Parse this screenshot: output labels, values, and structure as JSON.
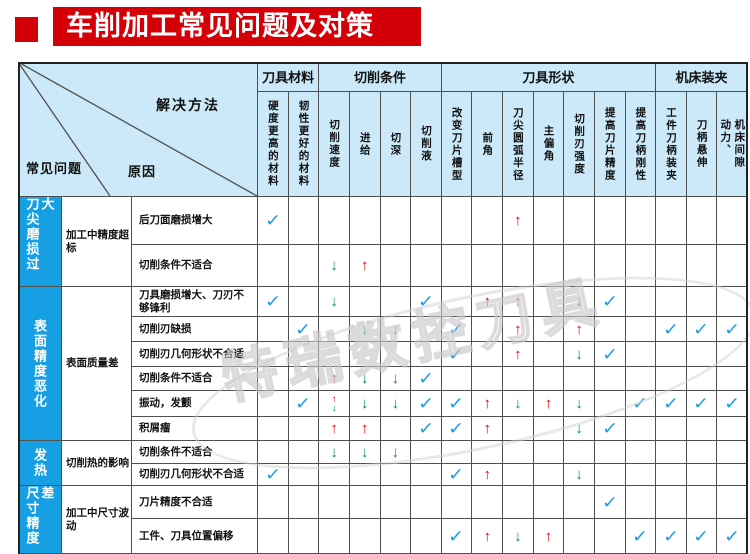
{
  "title": "车削加工常见问题及对策",
  "watermark": "特瑞数控刀具",
  "colors": {
    "title_red": "#d30008",
    "header_blue": "#cbe9f8",
    "category_blue": "#169fe2",
    "check_blue": "#1e9de3",
    "arrow_up_red": "#e60012",
    "arrow_down_green": "#00953e"
  },
  "corner": {
    "solution_label": "解决方法",
    "problem_label": "常见问题",
    "cause_label": "原因"
  },
  "column_groups": [
    {
      "label": "刀具材料",
      "span": 2
    },
    {
      "label": "切削条件",
      "span": 4
    },
    {
      "label": "刀具形状",
      "span": 7
    },
    {
      "label": "机床装夹",
      "span": 3
    }
  ],
  "columns": [
    "硬度更高的材料",
    "韧性更好的材料",
    "切削速度",
    "进给",
    "切深",
    "切削液",
    "改变刀片槽型",
    "前角",
    "刀尖圆弧半径",
    "主偏角",
    "切削刃强度",
    "提高刀片精度",
    "提高刀柄刚性",
    "工件刀柄装夹",
    "刀柄悬伸",
    "动力、\n机床间隙"
  ],
  "marks_key": {
    "c": "✓",
    "u": "↑",
    "d": "↓"
  },
  "row_groups": [
    {
      "category": "刀尖磨损过大",
      "problem": "加工中精度超标",
      "rows": [
        {
          "cause": "后刀面磨损增大",
          "marks": [
            "c",
            "",
            "",
            "",
            "",
            "",
            "",
            "",
            "u",
            "",
            "",
            "",
            "",
            "",
            "",
            ""
          ]
        },
        {
          "cause": "切削条件不适合",
          "marks": [
            "",
            "",
            "d",
            "u",
            "",
            "",
            "",
            "",
            "",
            "",
            "",
            "",
            "",
            "",
            "",
            ""
          ]
        }
      ]
    },
    {
      "category": "表面精度恶化",
      "problem": "表面质量差",
      "rows": [
        {
          "cause": "刀具磨损增大、刀刃不够锋利",
          "marks": [
            "c",
            "",
            "d",
            "",
            "",
            "c",
            "",
            "u",
            "u",
            "",
            "d",
            "c",
            "",
            "",
            "",
            ""
          ]
        },
        {
          "cause": "切削刃缺损",
          "marks": [
            "",
            "c",
            "",
            "d",
            "d",
            "",
            "c",
            "",
            "u",
            "",
            "u",
            "",
            "",
            "c",
            "c",
            "c"
          ]
        },
        {
          "cause": "切削刃几何形状不合适",
          "marks": [
            "",
            "",
            "",
            "",
            "",
            "",
            "c",
            "",
            "u",
            "",
            "d",
            "c",
            "",
            "",
            "",
            ""
          ]
        },
        {
          "cause": "切削条件不适合",
          "marks": [
            "",
            "",
            "u",
            "d",
            "d",
            "c",
            "",
            "",
            "",
            "",
            "",
            "",
            "",
            "",
            "",
            ""
          ]
        },
        {
          "cause": "振动，发颤",
          "marks": [
            "",
            "c",
            "ud",
            "d",
            "d",
            "c",
            "c",
            "u",
            "d",
            "u",
            "d",
            "",
            "c",
            "c",
            "c",
            "c"
          ]
        },
        {
          "cause": "积屑瘤",
          "marks": [
            "",
            "",
            "u",
            "u",
            "",
            "c",
            "c",
            "u",
            "",
            "",
            "d",
            "c",
            "",
            "",
            "",
            ""
          ]
        }
      ]
    },
    {
      "category": "发热",
      "problem": "切削热的影响",
      "rows": [
        {
          "cause": "切削条件不适合",
          "marks": [
            "",
            "",
            "d",
            "d",
            "d",
            "",
            "",
            "",
            "",
            "",
            "",
            "",
            "",
            "",
            "",
            ""
          ]
        },
        {
          "cause": "切削刃几何形状不合适",
          "marks": [
            "c",
            "",
            "",
            "",
            "",
            "",
            "c",
            "u",
            "",
            "",
            "d",
            "",
            "",
            "",
            "",
            ""
          ]
        }
      ]
    },
    {
      "category": "尺寸精度差",
      "problem": "加工中尺寸波动",
      "rows": [
        {
          "cause": "刀片精度不合适",
          "marks": [
            "",
            "",
            "",
            "",
            "",
            "",
            "",
            "",
            "",
            "",
            "",
            "c",
            "",
            "",
            "",
            ""
          ]
        },
        {
          "cause": "工件、刀具位置偏移",
          "marks": [
            "",
            "",
            "",
            "",
            "",
            "",
            "c",
            "u",
            "d",
            "u",
            "",
            "",
            "c",
            "c",
            "c",
            "c"
          ]
        }
      ]
    }
  ]
}
